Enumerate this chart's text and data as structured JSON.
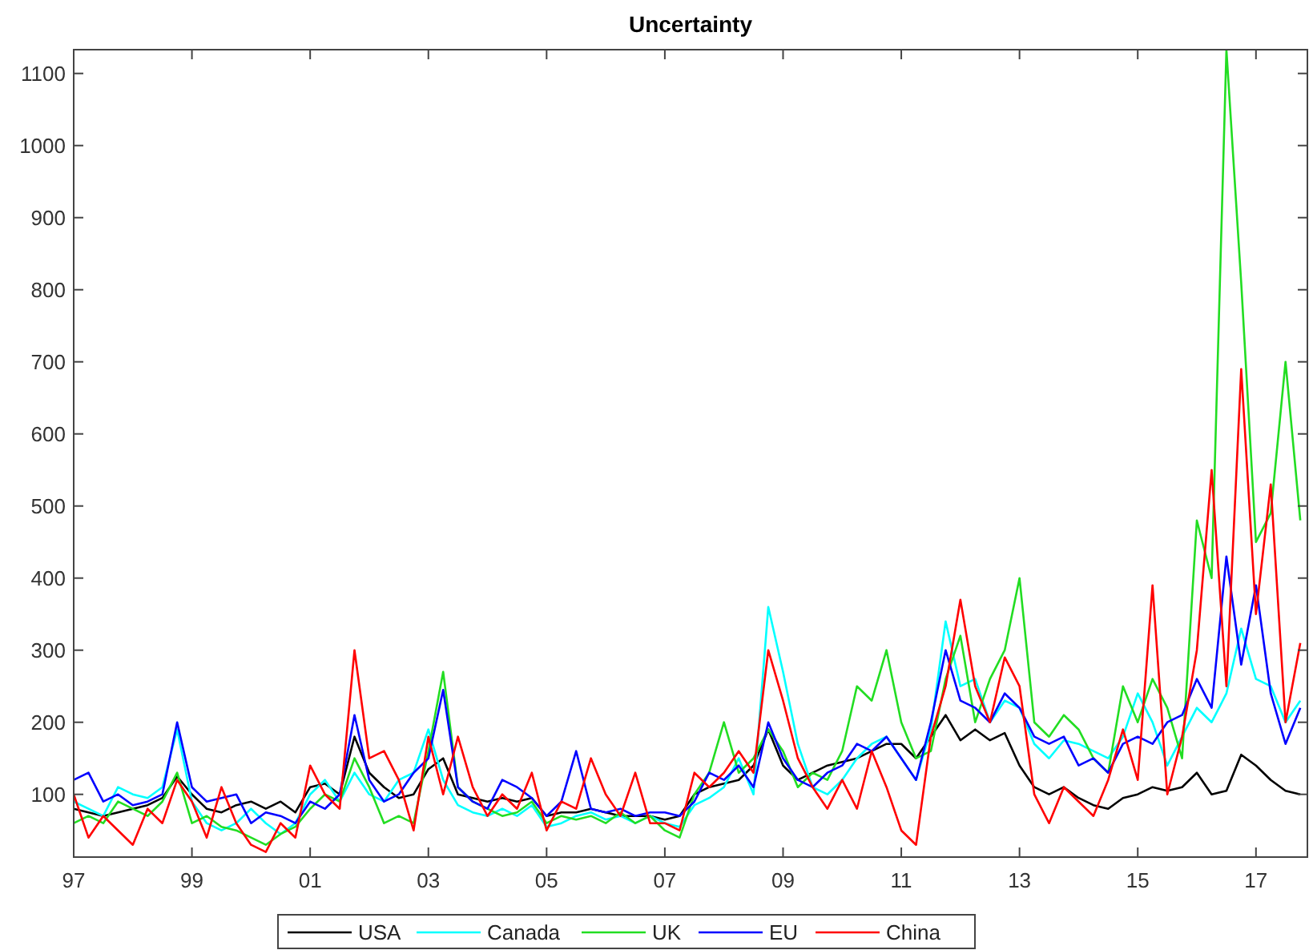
{
  "chart_data": {
    "type": "line",
    "title": "Uncertainty",
    "legend": "bottom",
    "grid": false,
    "marker": "none",
    "line_style": "solid",
    "x": [
      1997,
      1997.25,
      1997.5,
      1997.75,
      1998,
      1998.25,
      1998.5,
      1998.75,
      1999,
      1999.25,
      1999.5,
      1999.75,
      2000,
      2000.25,
      2000.5,
      2000.75,
      2001,
      2001.25,
      2001.5,
      2001.75,
      2002,
      2002.25,
      2002.5,
      2002.75,
      2003,
      2003.25,
      2003.5,
      2003.75,
      2004,
      2004.25,
      2004.5,
      2004.75,
      2005,
      2005.25,
      2005.5,
      2005.75,
      2006,
      2006.25,
      2006.5,
      2006.75,
      2007,
      2007.25,
      2007.5,
      2007.75,
      2008,
      2008.25,
      2008.5,
      2008.75,
      2009,
      2009.25,
      2009.5,
      2009.75,
      2010,
      2010.25,
      2010.5,
      2010.75,
      2011,
      2011.25,
      2011.5,
      2011.75,
      2012,
      2012.25,
      2012.5,
      2012.75,
      2013,
      2013.25,
      2013.5,
      2013.75,
      2014,
      2014.25,
      2014.5,
      2014.75,
      2015,
      2015.25,
      2015.5,
      2015.75,
      2016,
      2016.25,
      2016.5,
      2016.75,
      2017,
      2017.25,
      2017.5,
      2017.75
    ],
    "xlim": [
      1997,
      2017.87
    ],
    "xticks": [
      {
        "value": 1997,
        "label": "97"
      },
      {
        "value": 1999,
        "label": "99"
      },
      {
        "value": 2001,
        "label": "01"
      },
      {
        "value": 2003,
        "label": "03"
      },
      {
        "value": 2005,
        "label": "05"
      },
      {
        "value": 2007,
        "label": "07"
      },
      {
        "value": 2009,
        "label": "09"
      },
      {
        "value": 2011,
        "label": "11"
      },
      {
        "value": 2013,
        "label": "13"
      },
      {
        "value": 2015,
        "label": "15"
      },
      {
        "value": 2017,
        "label": "17"
      }
    ],
    "ylim": [
      13,
      1133
    ],
    "yticks": [
      100,
      200,
      300,
      400,
      500,
      600,
      700,
      800,
      900,
      1000,
      1100
    ],
    "series": [
      {
        "name": "USA",
        "color": "#000000",
        "values": [
          80,
          75,
          70,
          75,
          80,
          85,
          95,
          125,
          100,
          80,
          75,
          85,
          90,
          80,
          90,
          75,
          110,
          115,
          100,
          180,
          130,
          110,
          95,
          100,
          135,
          150,
          100,
          95,
          90,
          95,
          90,
          95,
          70,
          75,
          75,
          80,
          75,
          70,
          70,
          70,
          65,
          70,
          100,
          110,
          115,
          120,
          140,
          190,
          140,
          120,
          130,
          140,
          145,
          150,
          160,
          170,
          170,
          150,
          180,
          210,
          175,
          190,
          175,
          185,
          140,
          110,
          100,
          110,
          95,
          85,
          80,
          95,
          100,
          110,
          105,
          110,
          130,
          100,
          105,
          155,
          140,
          120,
          105,
          100
        ]
      },
      {
        "name": "Canada",
        "color": "#00ffff",
        "values": [
          90,
          80,
          70,
          110,
          100,
          95,
          110,
          190,
          90,
          60,
          50,
          60,
          80,
          60,
          45,
          60,
          100,
          120,
          90,
          130,
          100,
          90,
          120,
          130,
          190,
          120,
          85,
          75,
          70,
          80,
          70,
          85,
          55,
          60,
          70,
          75,
          65,
          70,
          60,
          70,
          60,
          55,
          85,
          95,
          110,
          150,
          100,
          360,
          270,
          170,
          110,
          100,
          120,
          150,
          170,
          180,
          150,
          120,
          190,
          340,
          250,
          260,
          200,
          230,
          220,
          170,
          150,
          175,
          170,
          160,
          150,
          180,
          240,
          200,
          140,
          180,
          220,
          200,
          240,
          330,
          260,
          250,
          200,
          230
        ]
      },
      {
        "name": "UK",
        "color": "#22dd22",
        "values": [
          60,
          70,
          60,
          90,
          80,
          70,
          90,
          130,
          60,
          70,
          55,
          50,
          40,
          30,
          45,
          55,
          80,
          100,
          90,
          150,
          110,
          60,
          70,
          60,
          160,
          270,
          110,
          90,
          80,
          70,
          75,
          90,
          60,
          70,
          65,
          70,
          60,
          75,
          60,
          70,
          50,
          40,
          100,
          130,
          200,
          130,
          150,
          190,
          160,
          110,
          130,
          120,
          160,
          250,
          230,
          300,
          200,
          150,
          160,
          260,
          320,
          200,
          260,
          300,
          400,
          200,
          180,
          210,
          190,
          150,
          130,
          250,
          200,
          260,
          220,
          150,
          480,
          400,
          1133,
          810,
          450,
          490,
          700,
          480
        ]
      },
      {
        "name": "EU",
        "color": "#0000ff",
        "values": [
          120,
          130,
          90,
          100,
          85,
          90,
          100,
          200,
          110,
          90,
          95,
          100,
          60,
          75,
          70,
          60,
          90,
          80,
          100,
          210,
          120,
          90,
          100,
          130,
          150,
          245,
          110,
          90,
          80,
          120,
          110,
          95,
          70,
          90,
          160,
          80,
          75,
          80,
          70,
          75,
          75,
          70,
          90,
          130,
          120,
          140,
          110,
          200,
          150,
          120,
          110,
          130,
          140,
          170,
          160,
          180,
          150,
          120,
          200,
          300,
          230,
          220,
          200,
          240,
          220,
          180,
          170,
          180,
          140,
          150,
          130,
          170,
          180,
          170,
          200,
          210,
          260,
          220,
          430,
          280,
          390,
          240,
          170,
          220
        ]
      },
      {
        "name": "China",
        "color": "#ff0000",
        "values": [
          100,
          40,
          70,
          50,
          30,
          80,
          60,
          120,
          90,
          40,
          110,
          60,
          30,
          20,
          60,
          40,
          140,
          100,
          80,
          300,
          150,
          160,
          120,
          50,
          180,
          100,
          180,
          110,
          70,
          100,
          80,
          130,
          50,
          90,
          80,
          150,
          100,
          70,
          130,
          60,
          60,
          50,
          130,
          110,
          130,
          160,
          130,
          300,
          230,
          150,
          110,
          80,
          120,
          80,
          160,
          110,
          50,
          30,
          180,
          250,
          370,
          250,
          200,
          290,
          250,
          100,
          60,
          110,
          90,
          70,
          120,
          190,
          120,
          390,
          100,
          180,
          300,
          550,
          250,
          690,
          350,
          530,
          200,
          310
        ]
      }
    ]
  }
}
